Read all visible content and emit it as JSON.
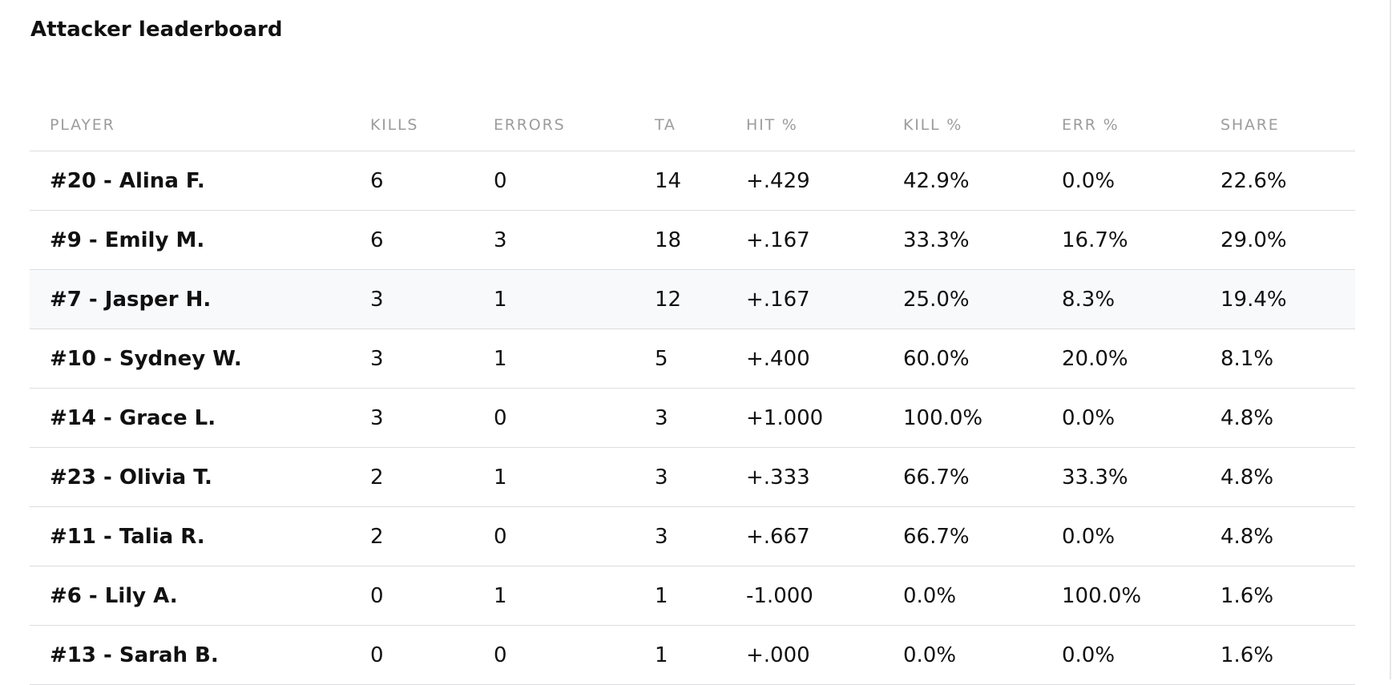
{
  "title": "Attacker leaderboard",
  "columns": [
    "PLAYER",
    "KILLS",
    "ERRORS",
    "TA",
    "HIT %",
    "KILL %",
    "ERR %",
    "SHARE"
  ],
  "rows": [
    {
      "player": "#20 - Alina F.",
      "kills": "6",
      "errors": "0",
      "ta": "14",
      "hit": "+.429",
      "kill_pct": "42.9%",
      "err_pct": "0.0%",
      "share": "22.6%"
    },
    {
      "player": "#9 - Emily M.",
      "kills": "6",
      "errors": "3",
      "ta": "18",
      "hit": "+.167",
      "kill_pct": "33.3%",
      "err_pct": "16.7%",
      "share": "29.0%"
    },
    {
      "player": "#7 - Jasper H.",
      "kills": "3",
      "errors": "1",
      "ta": "12",
      "hit": "+.167",
      "kill_pct": "25.0%",
      "err_pct": "8.3%",
      "share": "19.4%"
    },
    {
      "player": "#10 - Sydney W.",
      "kills": "3",
      "errors": "1",
      "ta": "5",
      "hit": "+.400",
      "kill_pct": "60.0%",
      "err_pct": "20.0%",
      "share": "8.1%"
    },
    {
      "player": "#14 - Grace L.",
      "kills": "3",
      "errors": "0",
      "ta": "3",
      "hit": "+1.000",
      "kill_pct": "100.0%",
      "err_pct": "0.0%",
      "share": "4.8%"
    },
    {
      "player": "#23 - Olivia T.",
      "kills": "2",
      "errors": "1",
      "ta": "3",
      "hit": "+.333",
      "kill_pct": "66.7%",
      "err_pct": "33.3%",
      "share": "4.8%"
    },
    {
      "player": "#11 - Talia R.",
      "kills": "2",
      "errors": "0",
      "ta": "3",
      "hit": "+.667",
      "kill_pct": "66.7%",
      "err_pct": "0.0%",
      "share": "4.8%"
    },
    {
      "player": "#6 - Lily A.",
      "kills": "0",
      "errors": "1",
      "ta": "1",
      "hit": "-1.000",
      "kill_pct": "0.0%",
      "err_pct": "100.0%",
      "share": "1.6%"
    },
    {
      "player": "#13 - Sarah B.",
      "kills": "0",
      "errors": "0",
      "ta": "1",
      "hit": "+.000",
      "kill_pct": "0.0%",
      "err_pct": "0.0%",
      "share": "1.6%"
    }
  ],
  "highlighted_row": 2,
  "colors": {
    "header_text": "#9c9c9c",
    "divider": "#dcdde0",
    "row_highlight": "#f8f9fb",
    "text": "#111111"
  }
}
